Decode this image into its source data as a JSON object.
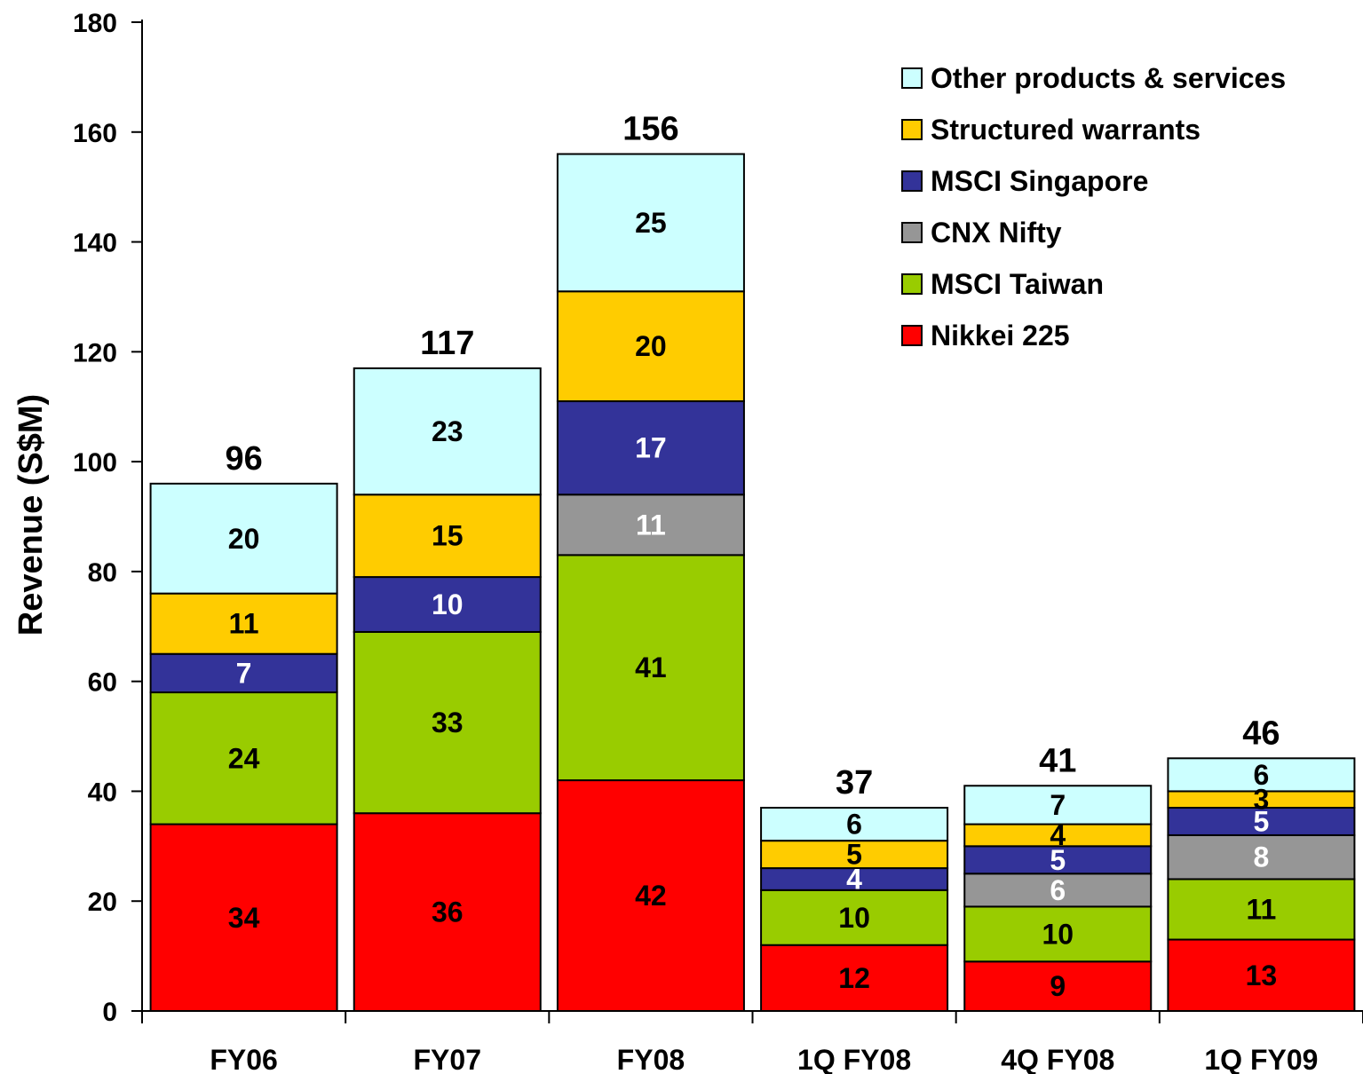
{
  "chart_data": {
    "type": "bar",
    "stacked": true,
    "categories": [
      "FY06",
      "FY07",
      "FY08",
      "1Q FY08",
      "4Q FY08",
      "1Q FY09"
    ],
    "series": [
      {
        "name": "Nikkei 225",
        "color": "#FF0000",
        "label_color": "#000000",
        "values": [
          34,
          36,
          42,
          12,
          9,
          13
        ]
      },
      {
        "name": "MSCI Taiwan",
        "color": "#99CC00",
        "label_color": "#000000",
        "values": [
          24,
          33,
          41,
          10,
          10,
          11
        ]
      },
      {
        "name": "CNX Nifty",
        "color": "#969696",
        "label_color": "#FFFFFF",
        "values": [
          0,
          0,
          11,
          0,
          6,
          8
        ]
      },
      {
        "name": "MSCI Singapore",
        "color": "#333399",
        "label_color": "#FFFFFF",
        "values": [
          7,
          10,
          17,
          4,
          5,
          5
        ]
      },
      {
        "name": "Structured warrants",
        "color": "#FFCC00",
        "label_color": "#000000",
        "values": [
          11,
          15,
          20,
          5,
          4,
          3
        ]
      },
      {
        "name": "Other products & services",
        "color": "#CCFFFF",
        "label_color": "#000000",
        "values": [
          20,
          23,
          25,
          6,
          7,
          6
        ]
      }
    ],
    "totals": [
      "96",
      "117",
      "156",
      "37",
      "41",
      "46"
    ],
    "ylabel": "Revenue (S$M)",
    "xlabel": "",
    "title": "",
    "ylim": [
      0,
      180
    ],
    "yticks": [
      "0",
      "20",
      "40",
      "60",
      "80",
      "100",
      "120",
      "140",
      "160",
      "180"
    ],
    "legend": {
      "position": "top-right",
      "entries": [
        "Other products & services",
        "Structured warrants",
        "MSCI Singapore",
        "CNX Nifty",
        "MSCI Taiwan",
        "Nikkei 225"
      ]
    },
    "grid": false
  }
}
